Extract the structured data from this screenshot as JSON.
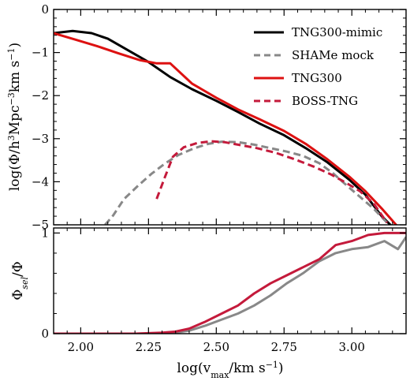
{
  "chart_data": [
    {
      "type": "line",
      "xlabel": "log(v_max/km s^-1)",
      "ylabel": "log(Φ/h^3Mpc^-3km s^-1)",
      "xlim": [
        1.9,
        3.2
      ],
      "ylim": [
        -5,
        0
      ],
      "xticks": [
        2.0,
        2.25,
        2.5,
        2.75,
        3.0
      ],
      "xtick_labels": [
        "2.00",
        "2.25",
        "2.50",
        "2.75",
        "3.00"
      ],
      "yticks": [
        -5,
        -4,
        -3,
        -2,
        -1,
        0
      ],
      "ytick_labels": [
        "−5",
        "−4",
        "−3",
        "−2",
        "−1",
        "0"
      ],
      "legend_position": "top-right",
      "series": [
        {
          "name": "TNG300-mimic",
          "color": "#000000",
          "style": "solid",
          "x": [
            1.9,
            1.97,
            2.04,
            2.1,
            2.17,
            2.25,
            2.33,
            2.41,
            2.5,
            2.58,
            2.66,
            2.75,
            2.83,
            2.91,
            2.99,
            3.05,
            3.11,
            3.15
          ],
          "y": [
            -0.55,
            -0.5,
            -0.55,
            -0.68,
            -0.93,
            -1.22,
            -1.57,
            -1.85,
            -2.12,
            -2.38,
            -2.65,
            -2.92,
            -3.22,
            -3.55,
            -3.95,
            -4.3,
            -4.8,
            -5.05
          ]
        },
        {
          "name": "SHAMe mock",
          "color": "#888888",
          "style": "dashed",
          "x": [
            2.09,
            2.12,
            2.16,
            2.21,
            2.26,
            2.31,
            2.36,
            2.42,
            2.47,
            2.52,
            2.58,
            2.64,
            2.7,
            2.76,
            2.82,
            2.88,
            2.93,
            2.98,
            3.03,
            3.08,
            3.13
          ],
          "y": [
            -5.0,
            -4.78,
            -4.4,
            -4.1,
            -3.82,
            -3.58,
            -3.38,
            -3.22,
            -3.12,
            -3.07,
            -3.08,
            -3.14,
            -3.22,
            -3.3,
            -3.4,
            -3.57,
            -3.8,
            -4.08,
            -4.35,
            -4.62,
            -4.95
          ]
        },
        {
          "name": "TNG300",
          "color": "#dd1111",
          "style": "solid",
          "x": [
            1.9,
            1.98,
            2.06,
            2.14,
            2.22,
            2.28,
            2.33,
            2.41,
            2.5,
            2.58,
            2.66,
            2.75,
            2.83,
            2.91,
            2.99,
            3.05,
            3.11,
            3.17
          ],
          "y": [
            -0.55,
            -0.7,
            -0.85,
            -1.02,
            -1.18,
            -1.25,
            -1.25,
            -1.72,
            -2.05,
            -2.32,
            -2.55,
            -2.82,
            -3.12,
            -3.48,
            -3.88,
            -4.22,
            -4.62,
            -5.05
          ]
        },
        {
          "name": "BOSS-TNG",
          "color": "#c41a3b",
          "style": "dashed",
          "x": [
            2.28,
            2.31,
            2.34,
            2.38,
            2.43,
            2.48,
            2.53,
            2.58,
            2.65,
            2.72,
            2.79,
            2.86,
            2.92,
            2.98,
            3.03,
            3.08,
            3.13
          ],
          "y": [
            -4.4,
            -3.9,
            -3.42,
            -3.2,
            -3.1,
            -3.06,
            -3.08,
            -3.14,
            -3.22,
            -3.33,
            -3.48,
            -3.65,
            -3.82,
            -4.03,
            -4.22,
            -4.5,
            -4.95
          ]
        }
      ]
    },
    {
      "type": "line",
      "xlabel": "log(v_max/km s^-1)",
      "ylabel": "Φ_sel/Φ",
      "xlim": [
        1.9,
        3.2
      ],
      "ylim": [
        0,
        1.05
      ],
      "xticks": [
        2.0,
        2.25,
        2.5,
        2.75,
        3.0
      ],
      "xtick_labels": [
        "2.00",
        "2.25",
        "2.50",
        "2.75",
        "3.00"
      ],
      "yticks": [
        0,
        1
      ],
      "ytick_labels": [
        "0",
        "1"
      ],
      "series": [
        {
          "color": "#888888",
          "style": "solid",
          "x": [
            1.9,
            2.0,
            2.1,
            2.2,
            2.3,
            2.35,
            2.4,
            2.46,
            2.52,
            2.58,
            2.64,
            2.7,
            2.76,
            2.82,
            2.88,
            2.94,
            3.0,
            3.06,
            3.12,
            3.17,
            3.2
          ],
          "y": [
            0.0,
            0.0,
            0.0,
            0.0,
            0.0,
            0.01,
            0.03,
            0.08,
            0.14,
            0.2,
            0.28,
            0.38,
            0.5,
            0.6,
            0.72,
            0.8,
            0.84,
            0.86,
            0.92,
            0.84,
            0.96
          ]
        },
        {
          "color": "#c41a3b",
          "style": "solid",
          "x": [
            1.9,
            2.0,
            2.1,
            2.2,
            2.3,
            2.35,
            2.4,
            2.46,
            2.52,
            2.58,
            2.64,
            2.7,
            2.76,
            2.82,
            2.88,
            2.94,
            3.0,
            3.06,
            3.12,
            3.2
          ],
          "y": [
            0.0,
            0.0,
            0.0,
            0.0,
            0.01,
            0.02,
            0.05,
            0.12,
            0.2,
            0.28,
            0.4,
            0.5,
            0.58,
            0.66,
            0.74,
            0.88,
            0.92,
            0.98,
            1.0,
            1.0
          ]
        }
      ]
    }
  ]
}
